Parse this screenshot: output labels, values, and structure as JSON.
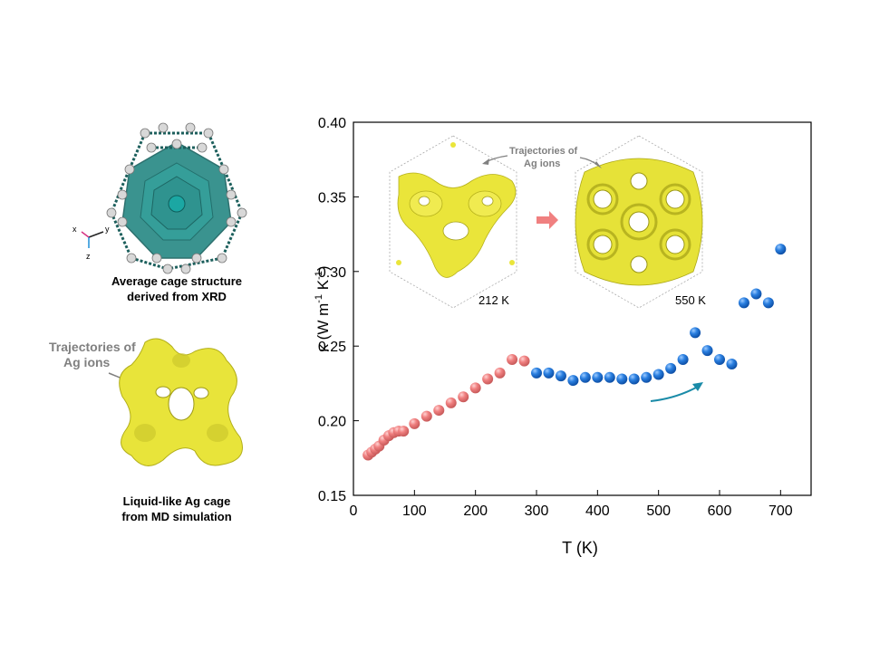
{
  "left_panel": {
    "cage_caption_line1": "Average cage structure",
    "cage_caption_line2": "derived from XRD",
    "axes_labels": {
      "x": "x",
      "y": "y",
      "z": "z"
    },
    "md_annotation_line1": "Trajectories of",
    "md_annotation_line2": "Ag ions",
    "md_caption_line1": "Liquid-like Ag cage",
    "md_caption_line2": "from MD simulation"
  },
  "insets": {
    "annotation_line1": "Trajectories of",
    "annotation_line2": "Ag ions",
    "label_left": "212 K",
    "label_right": "550 K"
  },
  "chart_data": {
    "type": "scatter",
    "title": "",
    "xlabel": "T (K)",
    "ylabel_base": "κ (W m",
    "ylabel_exp1": "-1",
    "ylabel_mid": " K",
    "ylabel_exp2": "-1",
    "ylabel_end": ")",
    "xlim": [
      0,
      750
    ],
    "ylim": [
      0.15,
      0.4
    ],
    "xticks": [
      0,
      100,
      200,
      300,
      400,
      500,
      600,
      700
    ],
    "yticks": [
      0.15,
      0.2,
      0.25,
      0.3,
      0.35,
      0.4
    ],
    "ytick_labels": [
      "0.15",
      "0.20",
      "0.25",
      "0.30",
      "0.35",
      "0.40"
    ],
    "grid": false,
    "series": [
      {
        "color": "#f08080",
        "points": [
          [
            24,
            0.177
          ],
          [
            30,
            0.179
          ],
          [
            36,
            0.181
          ],
          [
            42,
            0.183
          ],
          [
            50,
            0.187
          ],
          [
            58,
            0.19
          ],
          [
            66,
            0.192
          ],
          [
            74,
            0.193
          ],
          [
            82,
            0.193
          ],
          [
            100,
            0.198
          ],
          [
            120,
            0.203
          ],
          [
            140,
            0.207
          ],
          [
            160,
            0.212
          ],
          [
            180,
            0.216
          ],
          [
            200,
            0.222
          ],
          [
            220,
            0.228
          ],
          [
            240,
            0.232
          ],
          [
            260,
            0.241
          ],
          [
            280,
            0.24
          ]
        ]
      },
      {
        "color": "#1e6fd0",
        "points": [
          [
            300,
            0.232
          ],
          [
            320,
            0.232
          ],
          [
            340,
            0.23
          ],
          [
            360,
            0.227
          ],
          [
            380,
            0.229
          ],
          [
            400,
            0.229
          ],
          [
            420,
            0.229
          ],
          [
            440,
            0.228
          ],
          [
            460,
            0.228
          ],
          [
            480,
            0.229
          ],
          [
            500,
            0.231
          ],
          [
            520,
            0.235
          ],
          [
            540,
            0.241
          ],
          [
            560,
            0.259
          ],
          [
            580,
            0.247
          ],
          [
            600,
            0.241
          ],
          [
            620,
            0.238
          ],
          [
            640,
            0.279
          ],
          [
            660,
            0.285
          ],
          [
            680,
            0.279
          ],
          [
            700,
            0.315
          ]
        ]
      }
    ]
  }
}
